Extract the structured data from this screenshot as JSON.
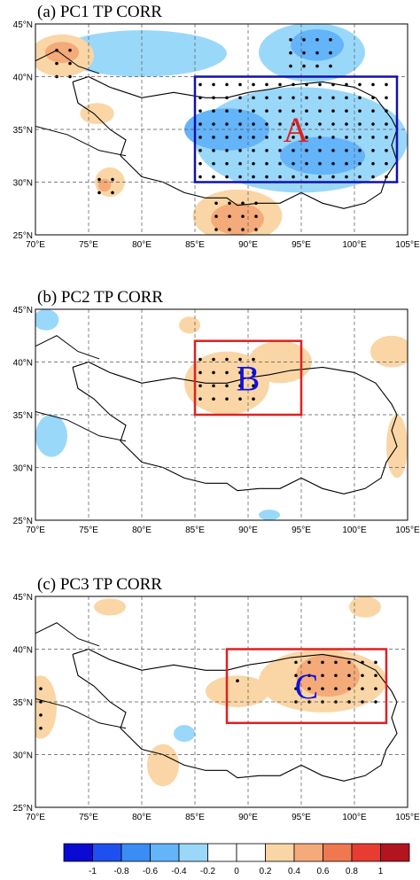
{
  "map": {
    "xlim": [
      70,
      105
    ],
    "ylim": [
      25,
      45
    ],
    "xticks": [
      {
        "value": 70,
        "label": "70°E"
      },
      {
        "value": 75,
        "label": "75°E"
      },
      {
        "value": 80,
        "label": "80°E"
      },
      {
        "value": 85,
        "label": "85°E"
      },
      {
        "value": 90,
        "label": "90°E"
      },
      {
        "value": 95,
        "label": "95°E"
      },
      {
        "value": 100,
        "label": "100°E"
      },
      {
        "value": 105,
        "label": "105°E"
      }
    ],
    "yticks": [
      {
        "value": 25,
        "label": "25°N"
      },
      {
        "value": 30,
        "label": "30°N"
      },
      {
        "value": 35,
        "label": "35°N"
      },
      {
        "value": 40,
        "label": "40°N"
      },
      {
        "value": 45,
        "label": "45°N"
      }
    ]
  },
  "panels": [
    {
      "title": "(a) PC1 TP CORR",
      "box": {
        "lon": [
          85,
          104
        ],
        "lat": [
          30,
          40
        ],
        "label": "A",
        "color": "#1010b0",
        "label_color": "#e02020"
      }
    },
    {
      "title": "(b) PC2 TP CORR",
      "box": {
        "lon": [
          85,
          95
        ],
        "lat": [
          35,
          42
        ],
        "label": "B",
        "color": "#e02020",
        "label_color": "#1010e0"
      }
    },
    {
      "title": "(c) PC3 TP CORR",
      "box": {
        "lon": [
          88,
          103
        ],
        "lat": [
          33,
          40
        ],
        "label": "C",
        "color": "#e02020",
        "label_color": "#1010e0"
      }
    }
  ],
  "colorbar": {
    "levels": [
      -1,
      -0.8,
      -0.6,
      -0.4,
      -0.2,
      0,
      0.2,
      0.4,
      0.6,
      0.8,
      1
    ],
    "colors": [
      "#0a0ad2",
      "#1e50f0",
      "#3c8cf5",
      "#64b4fa",
      "#9ad8fa",
      "#ffffff",
      "#ffffff",
      "#fad6a6",
      "#f5aa7a",
      "#f07850",
      "#e63c32",
      "#b4141e"
    ]
  }
}
